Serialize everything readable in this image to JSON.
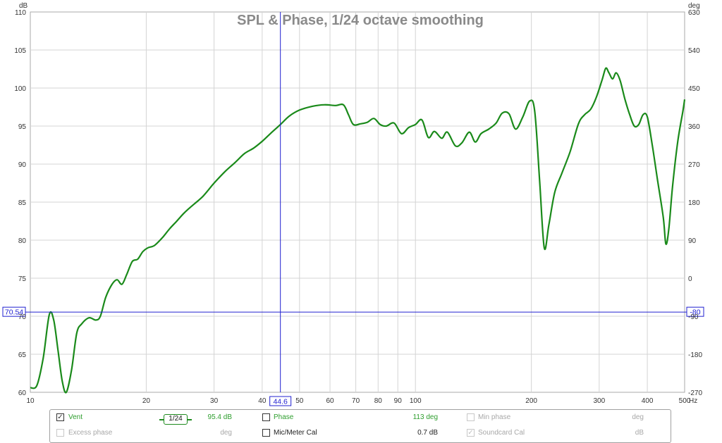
{
  "chart_data": {
    "type": "line",
    "title": "SPL & Phase, 1/24 octave smoothing",
    "x_axis": {
      "scale": "log",
      "range": [
        10,
        500
      ],
      "unit": "Hz",
      "tick_labels": [
        "10",
        "20",
        "30",
        "40",
        "50",
        "60",
        "70",
        "80",
        "90",
        "100",
        "200",
        "300",
        "400",
        "500"
      ]
    },
    "y_axis_left": {
      "unit": "dB",
      "range": [
        60,
        110
      ],
      "tick_labels": [
        "60",
        "65",
        "70",
        "75",
        "80",
        "85",
        "90",
        "95",
        "100",
        "105",
        "110"
      ]
    },
    "y_axis_right": {
      "unit": "deg",
      "range": [
        -270,
        630
      ],
      "tick_labels": [
        "-270",
        "-180",
        "-90",
        "0",
        "90",
        "180",
        "270",
        "360",
        "450",
        "540",
        "630"
      ]
    },
    "grid": true,
    "cursor": {
      "x_label": "44.6",
      "y_left_label": "70.54",
      "y_right_label": "-80"
    },
    "series": [
      {
        "name": "Vent",
        "color": "#1a8a1a",
        "points": [
          [
            10,
            60.6
          ],
          [
            10.4,
            60.9
          ],
          [
            10.8,
            64.5
          ],
          [
            11.2,
            70.2
          ],
          [
            11.5,
            69.5
          ],
          [
            11.8,
            65.5
          ],
          [
            12.1,
            61.5
          ],
          [
            12.4,
            60.0
          ],
          [
            12.8,
            63.0
          ],
          [
            13.2,
            67.8
          ],
          [
            13.6,
            69.0
          ],
          [
            14.2,
            69.8
          ],
          [
            14.8,
            69.5
          ],
          [
            15.2,
            70.0
          ],
          [
            15.7,
            72.5
          ],
          [
            16.3,
            74.2
          ],
          [
            16.8,
            74.8
          ],
          [
            17.3,
            74.2
          ],
          [
            17.8,
            75.5
          ],
          [
            18.4,
            77.2
          ],
          [
            19.0,
            77.5
          ],
          [
            19.6,
            78.5
          ],
          [
            20.2,
            79.0
          ],
          [
            21,
            79.3
          ],
          [
            22,
            80.3
          ],
          [
            23,
            81.5
          ],
          [
            24,
            82.5
          ],
          [
            25,
            83.5
          ],
          [
            26,
            84.3
          ],
          [
            27,
            85.0
          ],
          [
            28,
            85.7
          ],
          [
            29,
            86.6
          ],
          [
            30,
            87.5
          ],
          [
            32,
            89.0
          ],
          [
            34,
            90.2
          ],
          [
            36,
            91.4
          ],
          [
            38,
            92.1
          ],
          [
            40,
            93.0
          ],
          [
            42,
            94.0
          ],
          [
            44.6,
            95.2
          ],
          [
            47,
            96.3
          ],
          [
            50,
            97.1
          ],
          [
            54,
            97.6
          ],
          [
            58,
            97.8
          ],
          [
            62,
            97.7
          ],
          [
            65,
            97.8
          ],
          [
            67,
            96.5
          ],
          [
            69,
            95.2
          ],
          [
            72,
            95.3
          ],
          [
            75,
            95.5
          ],
          [
            78,
            96.0
          ],
          [
            81,
            95.2
          ],
          [
            84,
            95.0
          ],
          [
            88,
            95.4
          ],
          [
            92,
            94.0
          ],
          [
            96,
            94.8
          ],
          [
            100,
            95.2
          ],
          [
            104,
            95.8
          ],
          [
            108,
            93.5
          ],
          [
            112,
            94.3
          ],
          [
            117,
            93.4
          ],
          [
            121,
            94.2
          ],
          [
            127,
            92.4
          ],
          [
            132,
            92.8
          ],
          [
            138,
            94.2
          ],
          [
            143,
            92.9
          ],
          [
            148,
            94.0
          ],
          [
            155,
            94.6
          ],
          [
            162,
            95.4
          ],
          [
            168,
            96.7
          ],
          [
            175,
            96.6
          ],
          [
            182,
            94.6
          ],
          [
            190,
            96.2
          ],
          [
            198,
            98.3
          ],
          [
            204,
            97.0
          ],
          [
            210,
            88.0
          ],
          [
            216,
            79.0
          ],
          [
            222,
            82.0
          ],
          [
            230,
            86.3
          ],
          [
            240,
            88.8
          ],
          [
            252,
            91.6
          ],
          [
            265,
            95.3
          ],
          [
            275,
            96.5
          ],
          [
            285,
            97.2
          ],
          [
            295,
            98.8
          ],
          [
            305,
            101.0
          ],
          [
            312,
            102.6
          ],
          [
            318,
            102.0
          ],
          [
            325,
            101.2
          ],
          [
            332,
            102.0
          ],
          [
            340,
            101.0
          ],
          [
            350,
            98.5
          ],
          [
            360,
            96.5
          ],
          [
            370,
            95.0
          ],
          [
            380,
            95.2
          ],
          [
            390,
            96.5
          ],
          [
            400,
            96.2
          ],
          [
            412,
            92.5
          ],
          [
            425,
            88.0
          ],
          [
            440,
            83.0
          ],
          [
            447,
            79.5
          ],
          [
            455,
            81.5
          ],
          [
            465,
            87.0
          ],
          [
            480,
            93.0
          ],
          [
            495,
            97.0
          ],
          [
            500,
            98.5
          ]
        ]
      }
    ]
  },
  "legend": {
    "row1": {
      "vent_label": "Vent",
      "vent_checked": "✓",
      "smoothing": "1/24",
      "vent_value": "95.4 dB",
      "phase_label": "Phase",
      "phase_value": "113 deg",
      "minphase_label": "Min phase",
      "minphase_value": "deg"
    },
    "row2": {
      "excess_label": "Excess phase",
      "excess_value": "deg",
      "micmeter_label": "Mic/Meter Cal",
      "micmeter_value": "0.7 dB",
      "soundcard_label": "Soundcard Cal",
      "soundcard_checked": "✓",
      "soundcard_value": "dB"
    }
  },
  "colors": {
    "trace": "#1a8a1a",
    "cursor": "#2020d0",
    "grid": "#d4d4d4",
    "title": "#8a8a8a"
  }
}
